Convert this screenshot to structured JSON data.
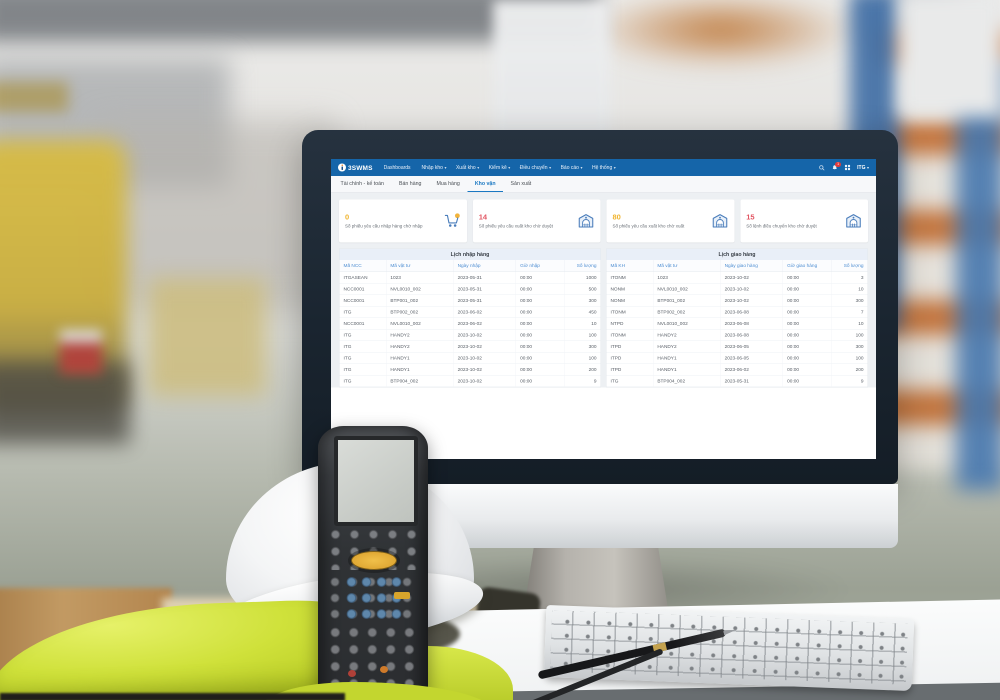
{
  "app": {
    "logo_part1": "3S",
    "logo_part2": "WMS"
  },
  "navbar": {
    "menu": [
      [
        "Dashboards",
        ""
      ],
      [
        "Nhập kho",
        "▾"
      ],
      [
        "Xuất kho",
        "▾"
      ],
      [
        "Kiểm kê",
        "▾"
      ],
      [
        "Điều chuyển",
        "▾"
      ],
      [
        "Báo cáo",
        "▾"
      ],
      [
        "Hệ thống",
        "▾"
      ]
    ],
    "notification_badge": "1",
    "user": "ITG",
    "user_caret": "▾"
  },
  "tabs": {
    "items": [
      "Tài chính - kế toán",
      "Bán hàng",
      "Mua hàng",
      "Kho vận",
      "Sản xuất"
    ],
    "active": "Kho vận"
  },
  "cards": [
    {
      "value": "0",
      "label": "Số phiếu yêu cầu nhập hàng chờ nhập",
      "icon": "cart-icon",
      "value_color": "#f0b42e"
    },
    {
      "value": "14",
      "label": "Số phiếu yêu cầu xuất kho chờ duyệt",
      "icon": "warehouse-icon",
      "value_color": "#e25663"
    },
    {
      "value": "80",
      "label": "Số phiếu yêu cầu xuất kho chờ xuất",
      "icon": "warehouse-icon",
      "value_color": "#f0b42e"
    },
    {
      "value": "15",
      "label": "Số lệnh điều chuyển kho chờ duyệt",
      "icon": "warehouse-icon",
      "value_color": "#e25663"
    }
  ],
  "import_table": {
    "title": "Lịch nhập hàng",
    "headers": [
      "Mã NCC",
      "Mã vật tư",
      "Ngày nhập",
      "Giờ nhập",
      "Số lượng"
    ],
    "rows": [
      [
        "ITGASEAN",
        "1023",
        "2023-05-31",
        "00:00",
        "1000"
      ],
      [
        "NCC0001",
        "NVL0010_002",
        "2023-05-31",
        "00:00",
        "500"
      ],
      [
        "NCC0001",
        "BTP001_002",
        "2023-05-31",
        "00:00",
        "300"
      ],
      [
        "ITG",
        "BTP002_002",
        "2023-06-02",
        "00:00",
        "450"
      ],
      [
        "NCC0001",
        "NVL0010_002",
        "2023-06-02",
        "00:00",
        "10"
      ],
      [
        "ITG",
        "HANDY2",
        "2023-10-02",
        "00:00",
        "100"
      ],
      [
        "ITG",
        "HANDY2",
        "2023-10-02",
        "00:00",
        "300"
      ],
      [
        "ITG",
        "HANDY1",
        "2023-10-02",
        "00:00",
        "100"
      ],
      [
        "ITG",
        "HANDY1",
        "2023-10-02",
        "00:00",
        "200"
      ],
      [
        "ITG",
        "BTP004_002",
        "2023-10-02",
        "00:00",
        "9"
      ]
    ]
  },
  "delivery_table": {
    "title": "Lịch giao hàng",
    "headers": [
      "Mã KH",
      "Mã vật tư",
      "Ngày giao hàng",
      "Giờ giao hàng",
      "Số lượng"
    ],
    "rows": [
      [
        "ITONM",
        "1023",
        "2023-10-02",
        "00:00",
        "3"
      ],
      [
        "NONM",
        "NVL0010_002",
        "2023-10-02",
        "00:00",
        "10"
      ],
      [
        "NONM",
        "BTP001_002",
        "2023-10-02",
        "00:00",
        "300"
      ],
      [
        "ITONM",
        "BTP002_002",
        "2023-06-08",
        "00:00",
        "7"
      ],
      [
        "NTPD",
        "NVL0010_002",
        "2023-06-08",
        "00:00",
        "10"
      ],
      [
        "ITONM",
        "HANDY2",
        "2023-06-08",
        "00:00",
        "100"
      ],
      [
        "ITPD",
        "HANDY2",
        "2023-06-05",
        "00:00",
        "300"
      ],
      [
        "ITPD",
        "HANDY1",
        "2023-06-05",
        "00:00",
        "100"
      ],
      [
        "ITPD",
        "HANDY1",
        "2023-06-02",
        "00:00",
        "200"
      ],
      [
        "ITG",
        "BTP004_002",
        "2023-05-31",
        "00:00",
        "9"
      ]
    ]
  },
  "colors": {
    "navbar_blue": "#1565a9",
    "active_tab_blue": "#1a78c2",
    "header_link_blue": "#4e8ed2",
    "card_yellow": "#f0b42e",
    "card_red": "#e25663",
    "icon_blue": "#4a7dbb",
    "vest_lime": "#cfe13a"
  }
}
